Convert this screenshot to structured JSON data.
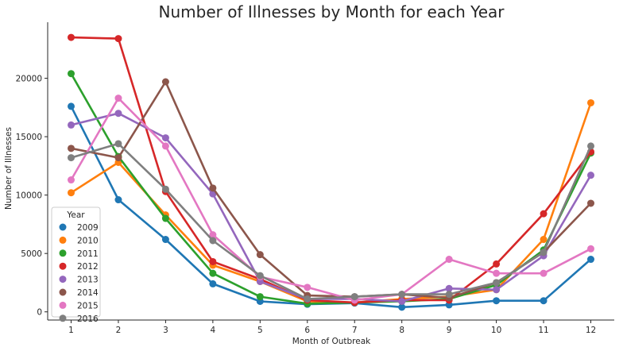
{
  "chart_data": {
    "type": "line",
    "title": "Number of Illnesses by Month for each Year",
    "xlabel": "Month of Outbreak",
    "ylabel": "Number of Illnesses",
    "categories": [
      "1",
      "2",
      "3",
      "4",
      "5",
      "6",
      "7",
      "8",
      "9",
      "10",
      "11",
      "12"
    ],
    "ylim": [
      -700,
      24800
    ],
    "yticks": [
      0,
      5000,
      10000,
      15000,
      20000
    ],
    "grid": false,
    "legend": {
      "title": "Year",
      "placement": "lower-left"
    },
    "series": [
      {
        "name": "2009",
        "color": "#1f77b4",
        "values": [
          17600,
          9600,
          6200,
          2400,
          900,
          650,
          750,
          400,
          600,
          950,
          950,
          4500
        ]
      },
      {
        "name": "2010",
        "color": "#ff7f0e",
        "values": [
          10200,
          12800,
          8300,
          4000,
          2600,
          900,
          800,
          1100,
          1300,
          1900,
          6200,
          17900
        ]
      },
      {
        "name": "2011",
        "color": "#2ca02c",
        "values": [
          20400,
          13300,
          8000,
          3300,
          1300,
          700,
          800,
          900,
          1100,
          2300,
          5300,
          13600
        ]
      },
      {
        "name": "2012",
        "color": "#d62728",
        "values": [
          23500,
          23400,
          10300,
          4300,
          2800,
          1000,
          800,
          1000,
          1000,
          4100,
          8400,
          13700
        ]
      },
      {
        "name": "2013",
        "color": "#9467bd",
        "values": [
          16000,
          17000,
          14900,
          10100,
          2600,
          1100,
          1100,
          900,
          2000,
          1900,
          4800,
          11700
        ]
      },
      {
        "name": "2014",
        "color": "#8c564b",
        "values": [
          14000,
          13200,
          19700,
          10600,
          4900,
          1400,
          1300,
          1500,
          1200,
          2500,
          5100,
          9300
        ]
      },
      {
        "name": "2015",
        "color": "#e377c2",
        "values": [
          11300,
          18300,
          14200,
          6600,
          3000,
          2100,
          1000,
          1500,
          4500,
          3300,
          3300,
          5400
        ]
      },
      {
        "name": "2016",
        "color": "#7f7f7f",
        "values": [
          13200,
          14400,
          10500,
          6100,
          3100,
          1100,
          1300,
          1500,
          1500,
          2500,
          5100,
          14200
        ]
      }
    ]
  }
}
